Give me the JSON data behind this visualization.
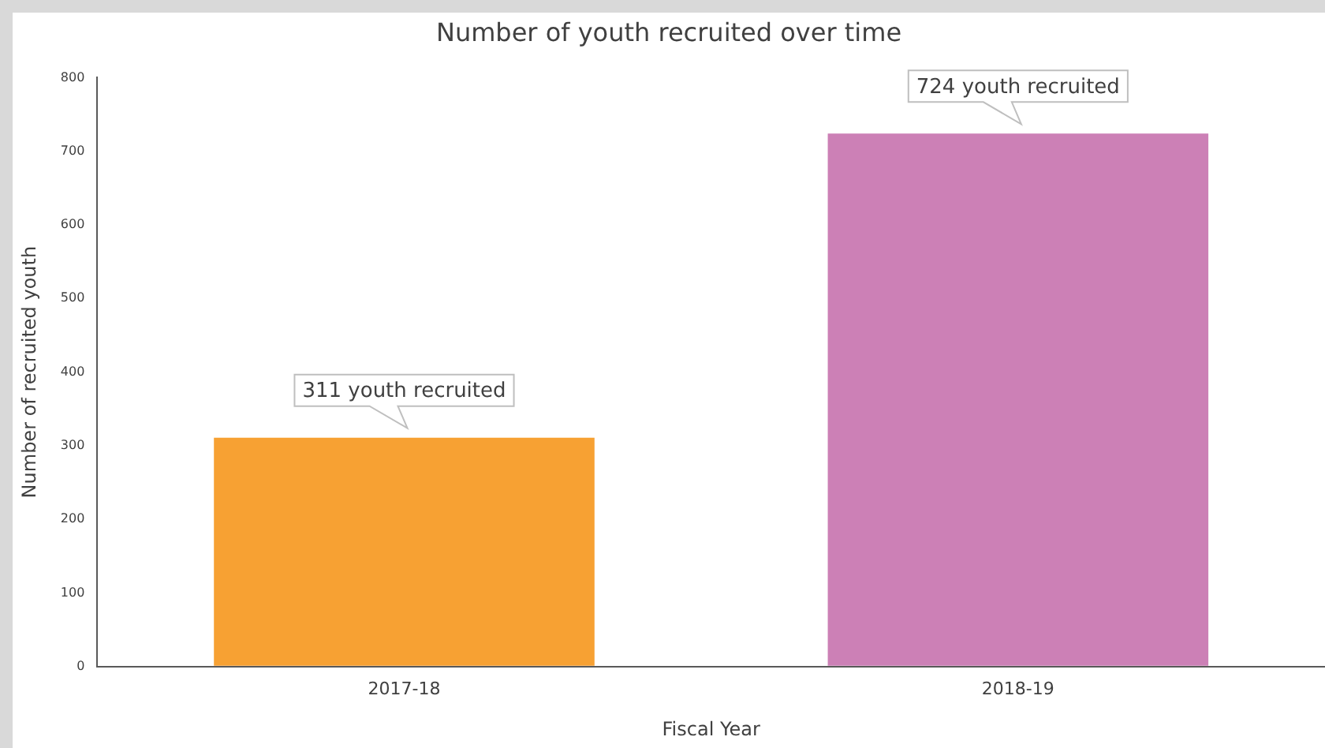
{
  "chart_data": {
    "type": "bar",
    "title": "Number of youth recruited over time",
    "xlabel": "Fiscal Year",
    "ylabel": "Number of recruited youth",
    "categories": [
      "2017-18",
      "2018-19"
    ],
    "values": [
      311,
      724
    ],
    "colors": [
      "#f7a133",
      "#cc80b6"
    ],
    "value_labels": [
      "311 youth recruited",
      "724 youth recruited"
    ],
    "ylim": [
      0,
      800
    ],
    "yticks": [
      0,
      100,
      200,
      300,
      400,
      500,
      600,
      700,
      800
    ],
    "grid": false,
    "legend": false
  }
}
